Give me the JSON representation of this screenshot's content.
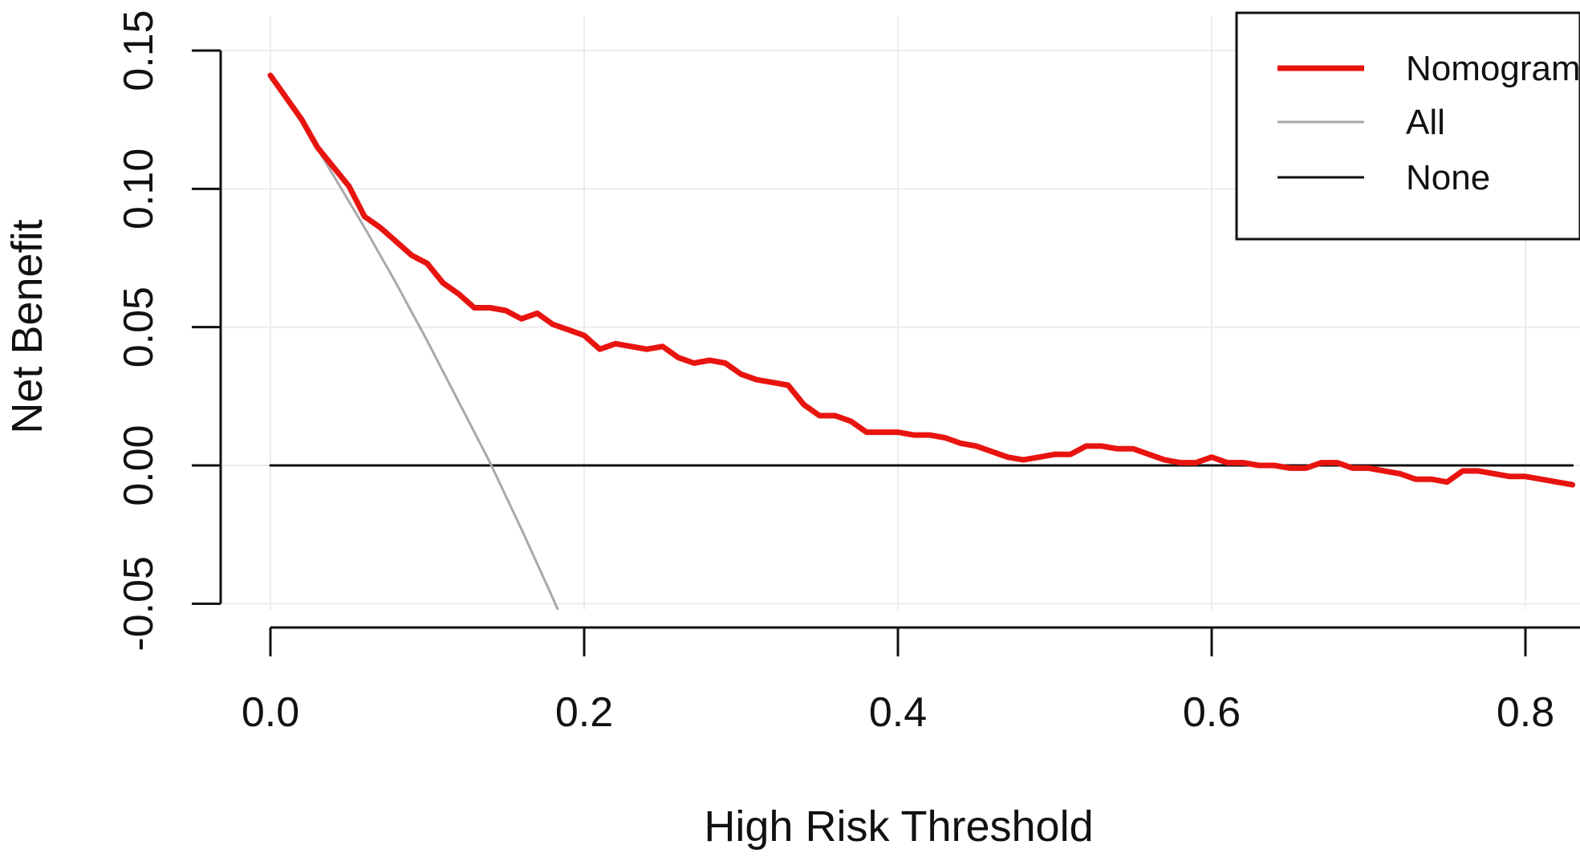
{
  "chart_data": {
    "type": "line",
    "title": "",
    "xlabel": "High Risk Threshold",
    "ylabel": "Net Benefit",
    "xlim": [
      0,
      0.83
    ],
    "ylim": [
      -0.05,
      0.15
    ],
    "x_ticks": [
      0.0,
      0.2,
      0.4,
      0.6,
      0.8
    ],
    "x_tick_labels": [
      "0.0",
      "0.2",
      "0.4",
      "0.6",
      "0.8"
    ],
    "y_ticks": [
      -0.05,
      0.0,
      0.05,
      0.1,
      0.15
    ],
    "y_tick_labels": [
      "-0.05",
      "0.00",
      "0.05",
      "0.10",
      "0.15"
    ],
    "grid": true,
    "legend_position": "top-right",
    "series": [
      {
        "name": "Nomogram",
        "color": "#e8140f",
        "x": [
          0.0,
          0.01,
          0.02,
          0.03,
          0.04,
          0.05,
          0.06,
          0.07,
          0.08,
          0.09,
          0.1,
          0.11,
          0.12,
          0.13,
          0.14,
          0.15,
          0.16,
          0.17,
          0.18,
          0.19,
          0.2,
          0.21,
          0.22,
          0.23,
          0.24,
          0.25,
          0.26,
          0.27,
          0.28,
          0.29,
          0.3,
          0.31,
          0.32,
          0.33,
          0.34,
          0.35,
          0.36,
          0.37,
          0.38,
          0.39,
          0.4,
          0.41,
          0.42,
          0.43,
          0.44,
          0.45,
          0.46,
          0.47,
          0.48,
          0.49,
          0.5,
          0.51,
          0.52,
          0.53,
          0.54,
          0.55,
          0.56,
          0.57,
          0.58,
          0.59,
          0.6,
          0.61,
          0.62,
          0.63,
          0.64,
          0.65,
          0.66,
          0.67,
          0.68,
          0.69,
          0.7,
          0.71,
          0.72,
          0.73,
          0.74,
          0.75,
          0.76,
          0.77,
          0.78,
          0.79,
          0.8,
          0.81,
          0.82,
          0.83
        ],
        "y": [
          0.141,
          0.133,
          0.125,
          0.115,
          0.108,
          0.101,
          0.09,
          0.086,
          0.081,
          0.076,
          0.073,
          0.066,
          0.062,
          0.057,
          0.057,
          0.056,
          0.053,
          0.055,
          0.051,
          0.049,
          0.047,
          0.042,
          0.044,
          0.043,
          0.042,
          0.043,
          0.039,
          0.037,
          0.038,
          0.037,
          0.033,
          0.031,
          0.03,
          0.029,
          0.022,
          0.018,
          0.018,
          0.016,
          0.012,
          0.012,
          0.012,
          0.011,
          0.011,
          0.01,
          0.008,
          0.007,
          0.005,
          0.003,
          0.002,
          0.003,
          0.004,
          0.004,
          0.007,
          0.007,
          0.006,
          0.006,
          0.004,
          0.002,
          0.001,
          0.001,
          0.003,
          0.001,
          0.001,
          0.0,
          0.0,
          -0.001,
          -0.001,
          0.001,
          0.001,
          -0.001,
          -0.001,
          -0.002,
          -0.003,
          -0.005,
          -0.005,
          -0.006,
          -0.002,
          -0.002,
          -0.003,
          -0.004,
          -0.004,
          -0.005,
          -0.006,
          -0.007
        ]
      },
      {
        "name": "All",
        "color": "#a9a9a9",
        "x": [
          0.0,
          0.02,
          0.04,
          0.06,
          0.08,
          0.1,
          0.12,
          0.14,
          0.16,
          0.18,
          0.19
        ],
        "y": [
          0.141,
          0.124,
          0.105,
          0.086,
          0.066,
          0.045,
          0.023,
          0.001,
          -0.023,
          -0.048,
          -0.061
        ]
      },
      {
        "name": "None",
        "color": "#111111",
        "x": [
          0.0,
          0.83
        ],
        "y": [
          0.0,
          0.0
        ]
      }
    ]
  }
}
